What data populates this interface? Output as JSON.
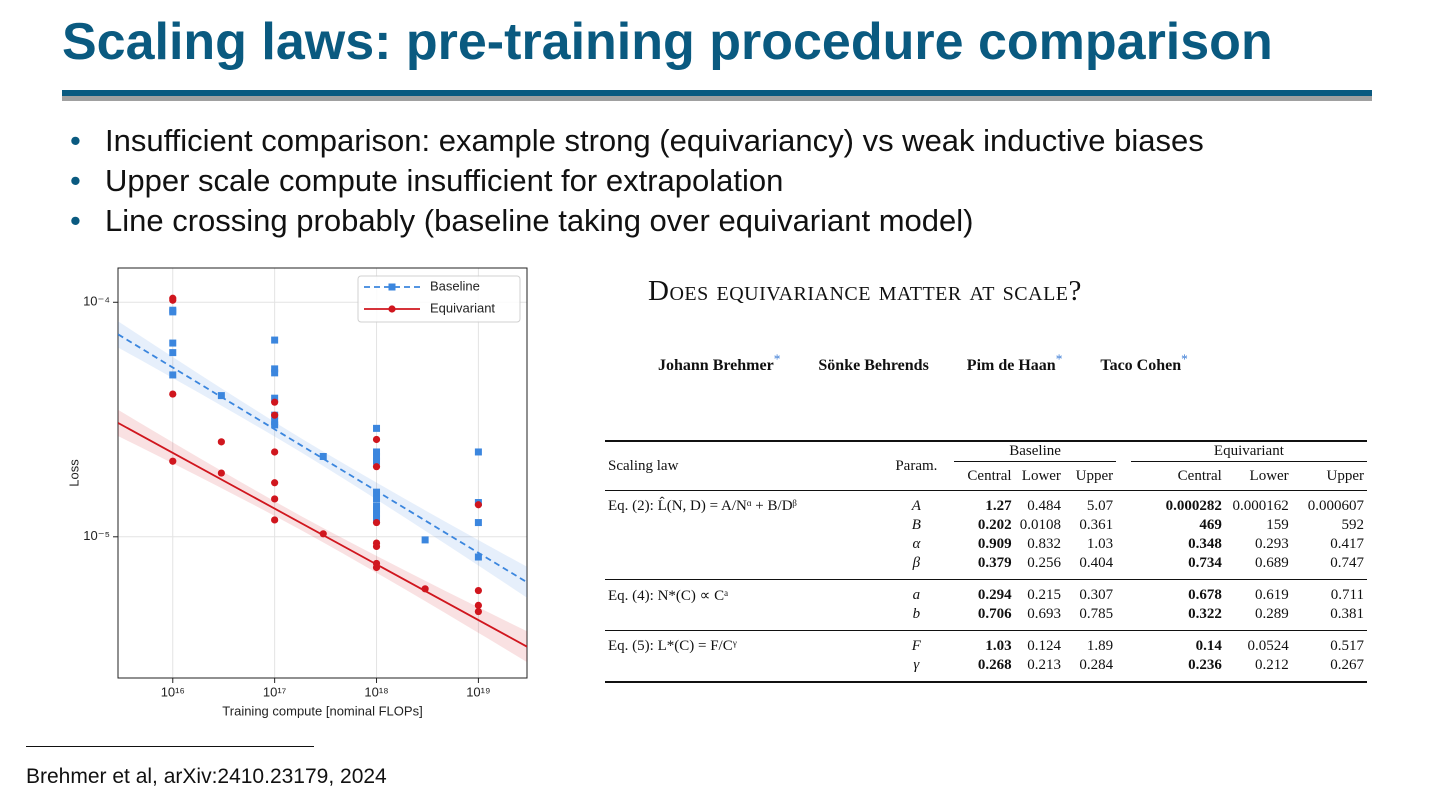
{
  "title": "Scaling laws: pre-training procedure comparison",
  "bullets": [
    "Insufficient comparison: example strong (equivariancy) vs weak inductive biases",
    "Upper scale compute insufficient for extrapolation",
    "Line crossing probably (baseline taking over equivariant model)"
  ],
  "chart_data": {
    "type": "scatter",
    "xlabel": "Training compute [nominal FLOPs]",
    "ylabel": "Loss",
    "xscale": "log",
    "yscale": "log",
    "xlim": [
      2900000000000000.0,
      3e+19
    ],
    "ylim": [
      2.5e-06,
      0.00014
    ],
    "xticks": [
      {
        "value": 1e+16,
        "label": "10¹⁶"
      },
      {
        "value": 1e+17,
        "label": "10¹⁷"
      },
      {
        "value": 1e+18,
        "label": "10¹⁸"
      },
      {
        "value": 1e+19,
        "label": "10¹⁹"
      }
    ],
    "yticks": [
      {
        "value": 1e-05,
        "label": "10⁻⁵"
      },
      {
        "value": 0.0001,
        "label": "10⁻⁴"
      }
    ],
    "grid": true,
    "legend": "upper right",
    "series": [
      {
        "name": "Baseline",
        "color": "#3b86de",
        "marker": "square",
        "linestyle": "dashed",
        "x": [
          1e+16,
          1e+16,
          1e+16,
          1e+16,
          1e+16,
          3e+16,
          1e+17,
          1e+17,
          1e+17,
          1e+17,
          1e+17,
          1e+17,
          1e+17,
          3e+17,
          1e+18,
          1e+18,
          1e+18,
          1e+18,
          1e+18,
          1e+18,
          1e+18,
          1e+18,
          1e+18,
          1e+18,
          3e+18,
          1e+19,
          1e+19,
          1e+19,
          1e+19
        ],
        "values": [
          9.25e-05,
          9.1e-05,
          6.7e-05,
          6.1e-05,
          4.9e-05,
          4e-05,
          6.9e-05,
          5.2e-05,
          5e-05,
          3.9e-05,
          3.3e-05,
          3.1e-05,
          3e-05,
          2.2e-05,
          2.9e-05,
          2.3e-05,
          2.2e-05,
          2.1e-05,
          1.55e-05,
          1.45e-05,
          1.35e-05,
          1.3e-05,
          1.25e-05,
          1.2e-05,
          9.7e-06,
          2.3e-05,
          1.4e-05,
          1.15e-05,
          8.2e-06
        ],
        "fit": {
          "x": [
            2900000000000000.0,
            3e+19
          ],
          "values": [
            7.3e-05,
            6.4e-06
          ]
        }
      },
      {
        "name": "Equivariant",
        "color": "#d0161e",
        "marker": "circle",
        "linestyle": "solid",
        "x": [
          1e+16,
          1e+16,
          1e+16,
          1e+16,
          3e+16,
          3e+16,
          1e+17,
          1e+17,
          1e+17,
          1e+17,
          1e+17,
          1e+17,
          3e+17,
          1e+18,
          1e+18,
          1e+18,
          1e+18,
          1e+18,
          1e+18,
          1e+18,
          3e+18,
          1e+19,
          1e+19,
          1e+19,
          1e+19
        ],
        "values": [
          0.000104,
          0.000102,
          4.06e-05,
          2.1e-05,
          2.54e-05,
          1.87e-05,
          3.75e-05,
          3.3e-05,
          2.3e-05,
          1.7e-05,
          1.45e-05,
          1.18e-05,
          1.03e-05,
          2.6e-05,
          1.99e-05,
          1.15e-05,
          9.4e-06,
          9.1e-06,
          7.7e-06,
          7.4e-06,
          6e-06,
          1.37e-05,
          5.9e-06,
          5.1e-06,
          4.8e-06
        ],
        "fit": {
          "x": [
            2900000000000000.0,
            3e+19
          ],
          "values": [
            3.06e-05,
            3.4e-06
          ]
        }
      }
    ]
  },
  "paper": {
    "title": "Does equivariance matter at scale?",
    "authors": [
      {
        "name": "Johann Brehmer",
        "mark": "*"
      },
      {
        "name": "Sönke Behrends"
      },
      {
        "name": "Pim de Haan",
        "mark": "*"
      },
      {
        "name": "Taco Cohen",
        "mark": "*"
      }
    ]
  },
  "table": {
    "headers": [
      "Scaling law",
      "Param."
    ],
    "groups": [
      "Baseline",
      "Equivariant"
    ],
    "subheaders": [
      "Central",
      "Lower",
      "Upper",
      "Central",
      "Lower",
      "Upper"
    ],
    "sections": [
      {
        "law": "Eq. (2): L̂(N, D) = A/Nᵅ + B/Dᵝ",
        "rows": [
          [
            "A",
            "1.27",
            "0.484",
            "5.07",
            "0.000282",
            "0.000162",
            "0.000607"
          ],
          [
            "B",
            "0.202",
            "0.0108",
            "0.361",
            "469",
            "159",
            "592"
          ],
          [
            "α",
            "0.909",
            "0.832",
            "1.03",
            "0.348",
            "0.293",
            "0.417"
          ],
          [
            "β",
            "0.379",
            "0.256",
            "0.404",
            "0.734",
            "0.689",
            "0.747"
          ]
        ]
      },
      {
        "law": "Eq. (4): N*(C) ∝ Cᵃ",
        "rows": [
          [
            "a",
            "0.294",
            "0.215",
            "0.307",
            "0.678",
            "0.619",
            "0.711"
          ],
          [
            "b",
            "0.706",
            "0.693",
            "0.785",
            "0.322",
            "0.289",
            "0.381"
          ]
        ]
      },
      {
        "law": "Eq. (5): L*(C) = F/Cᵞ",
        "rows": [
          [
            "F",
            "1.03",
            "0.124",
            "1.89",
            "0.14",
            "0.0524",
            "0.517"
          ],
          [
            "γ",
            "0.268",
            "0.213",
            "0.284",
            "0.236",
            "0.212",
            "0.267"
          ]
        ]
      }
    ]
  },
  "footnote": "Brehmer et al, arXiv:2410.23179, 2024"
}
